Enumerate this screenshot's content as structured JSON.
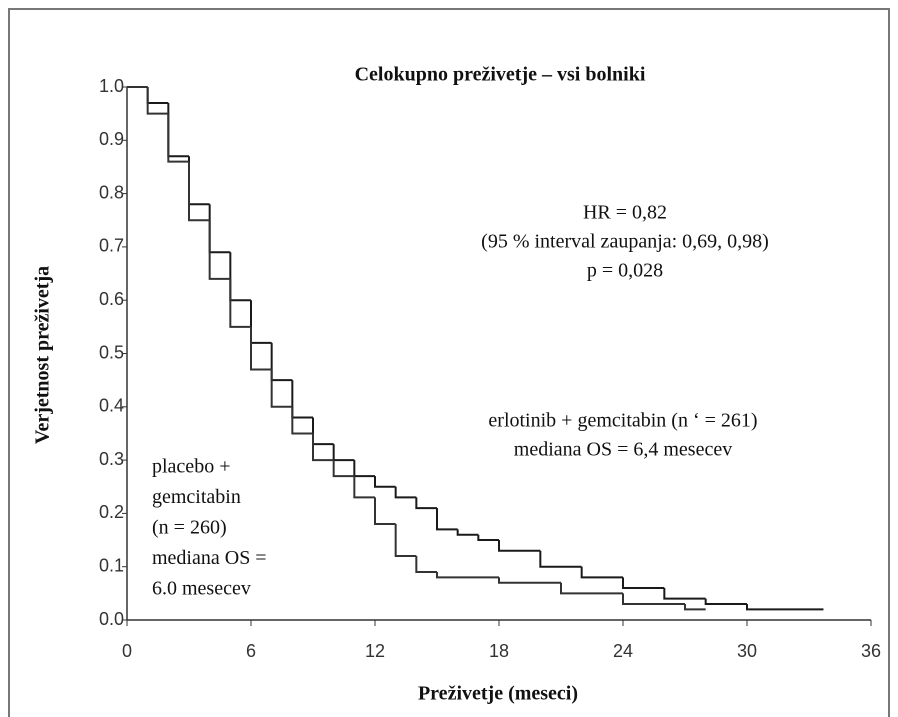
{
  "chart_data": {
    "type": "step",
    "title": "Celokupno preživetje – vsi bolniki",
    "x_label": "Preživetje (meseci)",
    "y_label": "Verjetnost preživetja",
    "xlim": [
      0,
      36
    ],
    "ylim": [
      0,
      1
    ],
    "xticks": [
      0,
      6,
      12,
      18,
      24,
      30,
      36
    ],
    "yticks": [
      {
        "value": 0,
        "label": "0.0"
      },
      0.1,
      0.2,
      0.3,
      0.4,
      0.5,
      0.6,
      0.7,
      0.8,
      0.9,
      {
        "value": 1,
        "label": "1.0"
      }
    ],
    "annotations": {
      "hr": [
        "HR = 0,82",
        "(95 % interval zaupanja: 0,69, 0,98)",
        "p = 0,028"
      ],
      "erlotinib": [
        "erlotinib + gemcitabin (n ‘ = 261)",
        "mediana OS = 6,4 mesecev"
      ],
      "placebo": [
        "placebo +",
        "gemcitabin",
        "(n = 260)",
        "mediana OS =",
        "6.0 mesecev"
      ]
    },
    "series": [
      {
        "name": "erlotinib + gemcitabin",
        "color": "#1a1a1a",
        "x": [
          0,
          1,
          2,
          3,
          4,
          5,
          6,
          7,
          8,
          9,
          10,
          11,
          12,
          13,
          14,
          15,
          16,
          17,
          18,
          20,
          22,
          24,
          26,
          28,
          30,
          31.5,
          33.7
        ],
        "values": [
          1.0,
          0.97,
          0.87,
          0.78,
          0.69,
          0.6,
          0.52,
          0.45,
          0.38,
          0.33,
          0.3,
          0.27,
          0.25,
          0.23,
          0.21,
          0.17,
          0.16,
          0.15,
          0.13,
          0.1,
          0.08,
          0.06,
          0.04,
          0.03,
          0.02,
          0.02,
          0.02
        ]
      },
      {
        "name": "placebo + gemcitabin",
        "color": "#333333",
        "x": [
          0,
          1,
          2,
          3,
          4,
          5,
          6,
          7,
          8,
          9,
          10,
          11,
          12,
          13,
          14,
          15,
          18,
          21,
          24,
          27,
          28
        ],
        "values": [
          1.0,
          0.95,
          0.86,
          0.75,
          0.64,
          0.55,
          0.47,
          0.4,
          0.35,
          0.3,
          0.27,
          0.23,
          0.18,
          0.12,
          0.09,
          0.08,
          0.07,
          0.05,
          0.03,
          0.02,
          0.02
        ]
      }
    ]
  }
}
